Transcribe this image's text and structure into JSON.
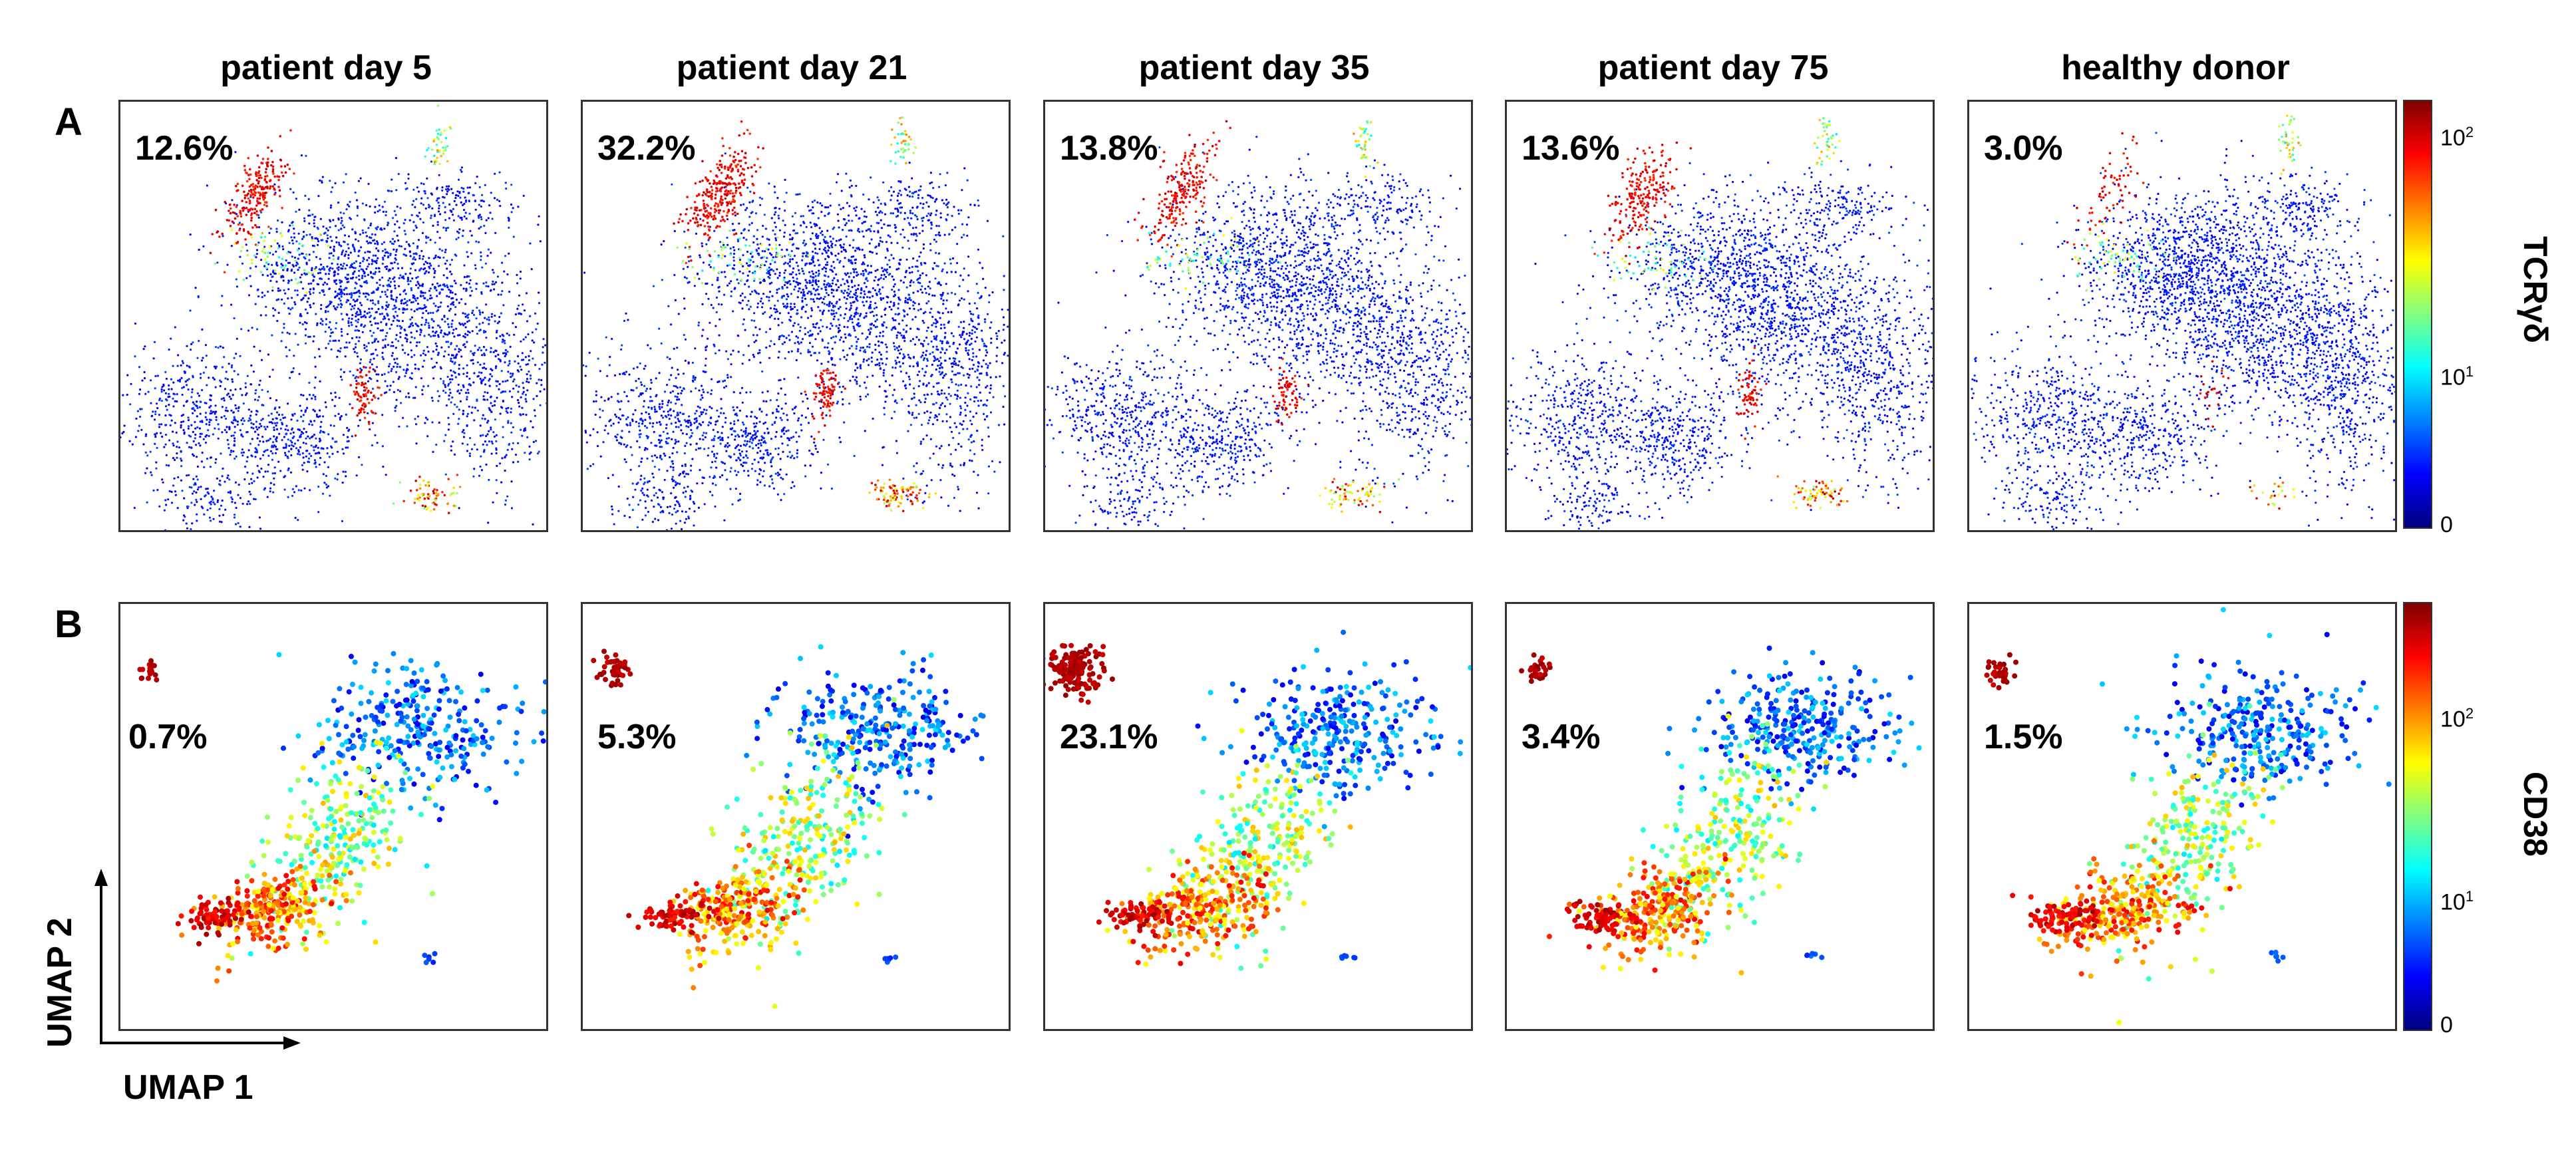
{
  "chart_data": {
    "type": "scatter",
    "title": "",
    "column_titles": [
      "patient day 5",
      "patient day 21",
      "patient day 35",
      "patient day 75",
      "healthy donor"
    ],
    "x_axis_label": "UMAP 1",
    "y_axis_label": "UMAP 2",
    "rows": [
      {
        "label": "A",
        "marker": "TCRγδ",
        "colorbar_ticks": [
          {
            "base": "10",
            "exp": "2"
          },
          {
            "base": "10",
            "exp": "1"
          },
          {
            "base": "0",
            "exp": ""
          }
        ],
        "percentages": [
          "12.6%",
          "32.2%",
          "13.8%",
          "13.6%",
          "3.0%"
        ]
      },
      {
        "label": "B",
        "marker": "CD38",
        "colorbar_ticks": [
          {
            "base": "10",
            "exp": "2"
          },
          {
            "base": "10",
            "exp": "1"
          },
          {
            "base": "0",
            "exp": ""
          }
        ],
        "percentages": [
          "0.7%",
          "5.3%",
          "23.1%",
          "3.4%",
          "1.5%"
        ]
      }
    ]
  },
  "colors": {
    "jet": [
      "#00007f",
      "#0000ff",
      "#0080ff",
      "#00ffff",
      "#80ff80",
      "#ffff00",
      "#ff8000",
      "#ff0000",
      "#7f0000"
    ]
  }
}
